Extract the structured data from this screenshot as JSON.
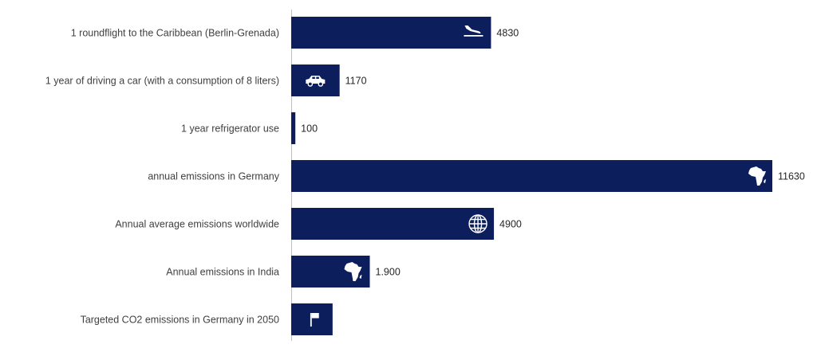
{
  "chart_data": {
    "type": "bar",
    "orientation": "horizontal",
    "bar_color": "#0c1f5c",
    "axis_color": "#bfbfbf",
    "xlim": [
      0,
      11630
    ],
    "grid": false,
    "legend": "none",
    "title": "",
    "xlabel": "",
    "ylabel": "",
    "categories": [
      "1 roundflight to the Caribbean (Berlin-Grenada)",
      "1 year of driving a car (with a consumption of 8 liters)",
      "1 year refrigerator use",
      "annual emissions in Germany",
      "Annual average emissions worldwide",
      "Annual emissions in India",
      "Targeted CO2 emissions in Germany in 2050"
    ],
    "values": [
      4830,
      1170,
      100,
      11630,
      4900,
      1900,
      1000
    ],
    "value_labels": [
      "4830",
      "1170",
      "100",
      "11630",
      "4900",
      "1.900",
      ""
    ],
    "icons": [
      "airplane-landing-icon",
      "car-icon",
      "",
      "africa-map-icon",
      "globe-icon",
      "africa-map-icon",
      "flag-icon"
    ]
  }
}
